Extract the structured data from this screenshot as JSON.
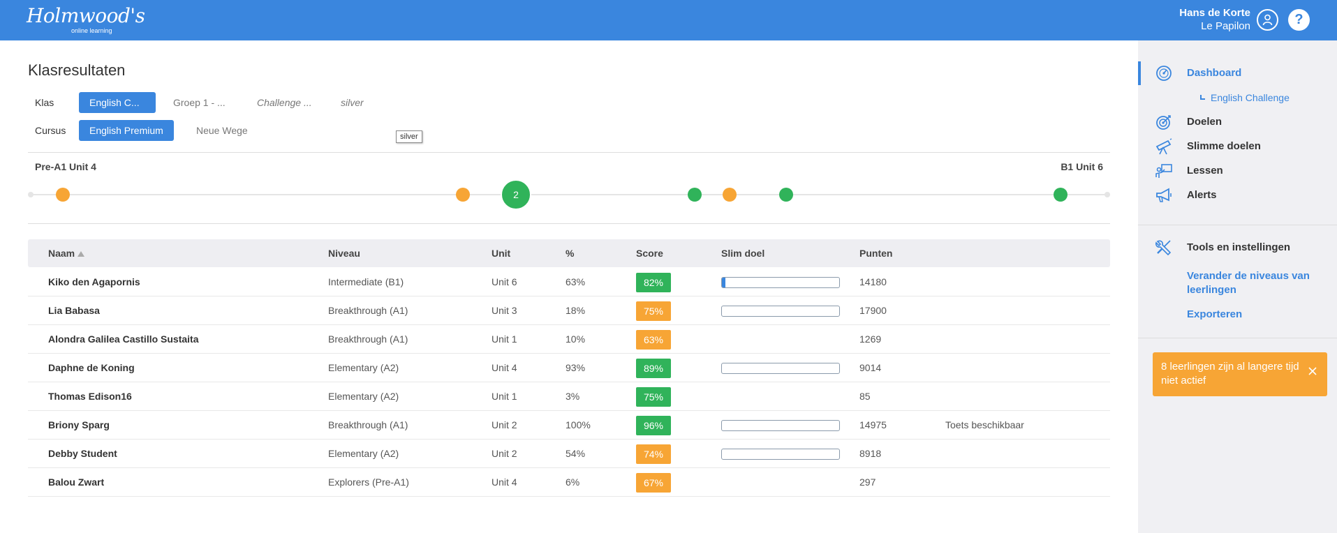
{
  "header": {
    "logo": "Holmwood's",
    "logo_sub": "online learning",
    "user_name": "Hans de Korte",
    "user_org": "Le Papilon",
    "help": "?"
  },
  "page": {
    "title": "Klasresultaten",
    "klas_label": "Klas",
    "klas_options": [
      "English C...",
      "Groep 1 - ...",
      "Challenge ...",
      "silver"
    ],
    "klas_selected": "English C...",
    "cursus_label": "Cursus",
    "cursus_options": [
      "English Premium",
      "Neue Wege"
    ],
    "cursus_selected": "English Premium",
    "tooltip": "silver"
  },
  "progress": {
    "start_label": "Pre-A1 Unit 4",
    "end_label": "B1 Unit 6",
    "cluster_count": "2",
    "colors": {
      "orange": "#f7a535",
      "green": "#30b35a",
      "track": "#e5e5e5"
    }
  },
  "table": {
    "headers": {
      "naam": "Naam",
      "niveau": "Niveau",
      "unit": "Unit",
      "pct": "%",
      "score": "Score",
      "slim": "Slim doel",
      "punten": "Punten"
    },
    "rows": [
      {
        "naam": "Kiko den Agapornis",
        "niveau": "Intermediate (B1)",
        "unit": "Unit 6",
        "pct": "63%",
        "score": "82%",
        "score_color": "green",
        "slim_progress": 0.03,
        "punten": "14180",
        "note": ""
      },
      {
        "naam": "Lia Babasa",
        "niveau": "Breakthrough (A1)",
        "unit": "Unit 3",
        "pct": "18%",
        "score": "75%",
        "score_color": "orange",
        "slim_progress": 0,
        "punten": "17900",
        "note": ""
      },
      {
        "naam": "Alondra Galilea Castillo Sustaita",
        "niveau": "Breakthrough (A1)",
        "unit": "Unit 1",
        "pct": "10%",
        "score": "63%",
        "score_color": "orange",
        "slim_progress": null,
        "punten": "1269",
        "note": ""
      },
      {
        "naam": "Daphne de Koning",
        "niveau": "Elementary (A2)",
        "unit": "Unit 4",
        "pct": "93%",
        "score": "89%",
        "score_color": "green",
        "slim_progress": 0,
        "punten": "9014",
        "note": ""
      },
      {
        "naam": "Thomas Edison16",
        "niveau": "Elementary (A2)",
        "unit": "Unit 1",
        "pct": "3%",
        "score": "75%",
        "score_color": "green",
        "slim_progress": null,
        "punten": "85",
        "note": ""
      },
      {
        "naam": "Briony Sparg",
        "niveau": "Breakthrough (A1)",
        "unit": "Unit 2",
        "pct": "100%",
        "score": "96%",
        "score_color": "green",
        "slim_progress": 0,
        "punten": "14975",
        "note": "Toets beschikbaar"
      },
      {
        "naam": "Debby Student",
        "niveau": "Elementary (A2)",
        "unit": "Unit 2",
        "pct": "54%",
        "score": "74%",
        "score_color": "orange",
        "slim_progress": 0,
        "punten": "8918",
        "note": ""
      },
      {
        "naam": "Balou Zwart",
        "niveau": "Explorers (Pre-A1)",
        "unit": "Unit 4",
        "pct": "6%",
        "score": "67%",
        "score_color": "orange",
        "slim_progress": null,
        "punten": "297",
        "note": ""
      }
    ]
  },
  "sidebar": {
    "items": [
      {
        "label": "Dashboard",
        "icon": "gauge-icon",
        "active": true
      },
      {
        "label": "Doelen",
        "icon": "target-icon"
      },
      {
        "label": "Slimme doelen",
        "icon": "telescope-icon"
      },
      {
        "label": "Lessen",
        "icon": "teacher-board-icon"
      },
      {
        "label": "Alerts",
        "icon": "megaphone-icon"
      }
    ],
    "sub_item": "English Challenge",
    "tools_label": "Tools en instellingen",
    "tools_icon": "wrench-screwdriver-icon",
    "link_levels": "Verander de niveaus van leerlingen",
    "link_export": "Exporteren",
    "alert_text": "8 leerlingen zijn al langere tijd niet actief"
  },
  "colors": {
    "brand": "#3a86de",
    "score_green": "#30b35a",
    "score_orange": "#f7a535",
    "sidebar_bg": "#f0f0f3"
  }
}
